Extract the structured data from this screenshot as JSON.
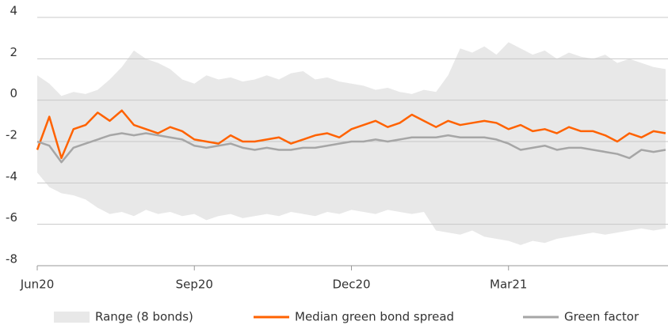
{
  "chart_data": {
    "type": "line",
    "categories": [
      "Jun20",
      null,
      null,
      null,
      null,
      null,
      null,
      null,
      null,
      null,
      null,
      null,
      null,
      "Sep20",
      null,
      null,
      null,
      null,
      null,
      null,
      null,
      null,
      null,
      null,
      null,
      null,
      "Dec20",
      null,
      null,
      null,
      null,
      null,
      null,
      null,
      null,
      null,
      null,
      null,
      null,
      "Mar21",
      null,
      null,
      null,
      null,
      null,
      null,
      null,
      null,
      null,
      null,
      null,
      null,
      null
    ],
    "series": [
      {
        "name": "Range (8 bonds)",
        "color": "#e8e8e8",
        "type": "area-range",
        "high": [
          1.2,
          0.8,
          0.2,
          0.4,
          0.3,
          0.5,
          1.0,
          1.6,
          2.4,
          2.0,
          1.8,
          1.5,
          1.0,
          0.8,
          1.2,
          1.0,
          1.1,
          0.9,
          1.0,
          1.2,
          1.0,
          1.3,
          1.4,
          1.0,
          1.1,
          0.9,
          0.8,
          0.7,
          0.5,
          0.6,
          0.4,
          0.3,
          0.5,
          0.4,
          1.2,
          2.5,
          2.3,
          2.6,
          2.2,
          2.8,
          2.5,
          2.2,
          2.4,
          2.0,
          2.3,
          2.1,
          2.0,
          2.2,
          1.8,
          2.0,
          1.8,
          1.6,
          1.5
        ],
        "low": [
          -3.5,
          -4.2,
          -4.5,
          -4.6,
          -4.8,
          -5.2,
          -5.5,
          -5.4,
          -5.6,
          -5.3,
          -5.5,
          -5.4,
          -5.6,
          -5.5,
          -5.8,
          -5.6,
          -5.5,
          -5.7,
          -5.6,
          -5.5,
          -5.6,
          -5.4,
          -5.5,
          -5.6,
          -5.4,
          -5.5,
          -5.3,
          -5.4,
          -5.5,
          -5.3,
          -5.4,
          -5.5,
          -5.4,
          -6.3,
          -6.4,
          -6.5,
          -6.3,
          -6.6,
          -6.7,
          -6.8,
          -7.0,
          -6.8,
          -6.9,
          -6.7,
          -6.6,
          -6.5,
          -6.4,
          -6.5,
          -6.4,
          -6.3,
          -6.2,
          -6.3,
          -6.2
        ]
      },
      {
        "name": "Median green bond spread",
        "color": "#ff6200",
        "values": [
          -2.4,
          -0.8,
          -2.8,
          -1.4,
          -1.2,
          -0.6,
          -1.0,
          -0.5,
          -1.2,
          -1.4,
          -1.6,
          -1.3,
          -1.5,
          -1.9,
          -2.0,
          -2.1,
          -1.7,
          -2.0,
          -2.0,
          -1.9,
          -1.8,
          -2.1,
          -1.9,
          -1.7,
          -1.6,
          -1.8,
          -1.4,
          -1.2,
          -1.0,
          -1.3,
          -1.1,
          -0.7,
          -1.0,
          -1.3,
          -1.0,
          -1.2,
          -1.1,
          -1.0,
          -1.1,
          -1.4,
          -1.2,
          -1.5,
          -1.4,
          -1.6,
          -1.3,
          -1.5,
          -1.5,
          -1.7,
          -2.0,
          -1.6,
          -1.8,
          -1.5,
          -1.6
        ]
      },
      {
        "name": "Green factor",
        "color": "#a6a6a6",
        "values": [
          -2.0,
          -2.2,
          -3.0,
          -2.3,
          -2.1,
          -1.9,
          -1.7,
          -1.6,
          -1.7,
          -1.6,
          -1.7,
          -1.8,
          -1.9,
          -2.2,
          -2.3,
          -2.2,
          -2.1,
          -2.3,
          -2.4,
          -2.3,
          -2.4,
          -2.4,
          -2.3,
          -2.3,
          -2.2,
          -2.1,
          -2.0,
          -2.0,
          -1.9,
          -2.0,
          -1.9,
          -1.8,
          -1.8,
          -1.8,
          -1.7,
          -1.8,
          -1.8,
          -1.8,
          -1.9,
          -2.1,
          -2.4,
          -2.3,
          -2.2,
          -2.4,
          -2.3,
          -2.3,
          -2.4,
          -2.5,
          -2.6,
          -2.8,
          -2.4,
          -2.5,
          -2.4
        ]
      }
    ],
    "ylim": [
      -8,
      4
    ],
    "yticks": [
      -8,
      -6,
      -4,
      -2,
      0,
      2,
      4
    ],
    "grid": true,
    "legend": "bottom"
  }
}
